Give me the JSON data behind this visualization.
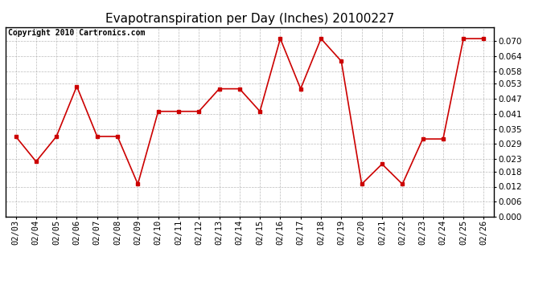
{
  "title": "Evapotranspiration per Day (Inches) 20100227",
  "copyright_text": "Copyright 2010 Cartronics.com",
  "dates": [
    "02/03",
    "02/04",
    "02/05",
    "02/06",
    "02/07",
    "02/08",
    "02/09",
    "02/10",
    "02/11",
    "02/12",
    "02/13",
    "02/14",
    "02/15",
    "02/16",
    "02/17",
    "02/18",
    "02/19",
    "02/20",
    "02/21",
    "02/22",
    "02/23",
    "02/24",
    "02/25",
    "02/26"
  ],
  "values": [
    0.032,
    0.022,
    0.032,
    0.052,
    0.032,
    0.032,
    0.013,
    0.042,
    0.042,
    0.042,
    0.051,
    0.051,
    0.042,
    0.071,
    0.051,
    0.071,
    0.062,
    0.013,
    0.021,
    0.013,
    0.031,
    0.031,
    0.071,
    0.071
  ],
  "line_color": "#cc0000",
  "marker": "s",
  "marker_size": 3,
  "background_color": "#ffffff",
  "plot_bg_color": "#ffffff",
  "grid_color": "#aaaaaa",
  "ylim": [
    0.0,
    0.0756
  ],
  "yticks": [
    0.0,
    0.006,
    0.012,
    0.018,
    0.023,
    0.029,
    0.035,
    0.041,
    0.047,
    0.053,
    0.058,
    0.064,
    0.07
  ],
  "title_fontsize": 11,
  "copyright_fontsize": 7,
  "tick_fontsize": 7.5
}
